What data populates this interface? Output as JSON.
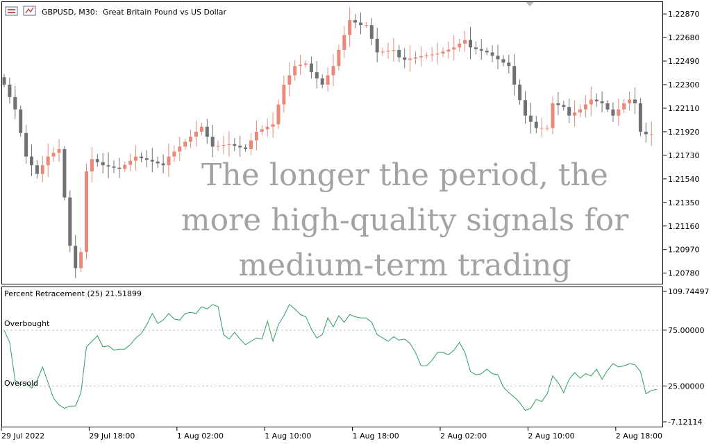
{
  "header": {
    "symbol_label": "GBPUSD, M30:",
    "description": "Great Britain Pound vs US Dollar"
  },
  "overlay": {
    "lines": [
      "The longer the period, the",
      "more high-quality signals for",
      "medium-term trading"
    ]
  },
  "indicator": {
    "label": "Percent Retracement (25) 21.51899",
    "overbought_label": "Overbought",
    "oversold_label": "Oversold"
  },
  "colors": {
    "bull": "#e8897a",
    "bear": "#6f7275",
    "indicator_line": "#2e9e5e",
    "level_line": "#c4c4c4",
    "overlay_text": "#a3a3a3"
  },
  "chart_data": [
    {
      "type": "candlestick",
      "title": "GBPUSD, M30: Great Britain Pound vs US Dollar",
      "ylim": [
        1.207,
        1.2296
      ],
      "y_ticks": [
        1.2287,
        1.2268,
        1.2249,
        1.223,
        1.2211,
        1.2192,
        1.2173,
        1.2154,
        1.2135,
        1.2116,
        1.2097,
        1.2078
      ],
      "y_tick_labels": [
        "1.22870",
        "1.22680",
        "1.22490",
        "1.22300",
        "1.22110",
        "1.21920",
        "1.21730",
        "1.21540",
        "1.21350",
        "1.21160",
        "1.20970",
        "1.20780"
      ],
      "x_tick_labels": [
        "29 Jul 2022",
        "29 Jul 18:00",
        "1 Aug 02:00",
        "1 Aug 10:00",
        "1 Aug 18:00",
        "2 Aug 02:00",
        "2 Aug 10:00",
        "2 Aug 18:00"
      ],
      "x_tick_index": [
        0,
        16,
        32,
        48,
        64,
        80,
        96,
        112
      ],
      "close_anchors": [
        [
          0,
          1.223
        ],
        [
          2,
          1.221
        ],
        [
          4,
          1.2172
        ],
        [
          6,
          1.2158
        ],
        [
          8,
          1.2172
        ],
        [
          10,
          1.2178
        ],
        [
          12,
          1.21
        ],
        [
          13,
          1.2082
        ],
        [
          14,
          1.2095
        ],
        [
          15,
          1.216
        ],
        [
          16,
          1.217
        ],
        [
          18,
          1.2165
        ],
        [
          21,
          1.2162
        ],
        [
          24,
          1.2172
        ],
        [
          27,
          1.2168
        ],
        [
          29,
          1.2165
        ],
        [
          30,
          1.2172
        ],
        [
          34,
          1.2188
        ],
        [
          36,
          1.2196
        ],
        [
          38,
          1.218
        ],
        [
          41,
          1.2182
        ],
        [
          44,
          1.2178
        ],
        [
          46,
          1.2192
        ],
        [
          49,
          1.2198
        ],
        [
          51,
          1.223
        ],
        [
          53,
          1.2245
        ],
        [
          55,
          1.2247
        ],
        [
          56,
          1.224
        ],
        [
          58,
          1.223
        ],
        [
          60,
          1.2245
        ],
        [
          61,
          1.2258
        ],
        [
          63,
          1.2282
        ],
        [
          65,
          1.2278
        ],
        [
          66,
          1.2278
        ],
        [
          68,
          1.2256
        ],
        [
          71,
          1.2258
        ],
        [
          72,
          1.2252
        ],
        [
          73,
          1.225
        ],
        [
          76,
          1.2253
        ],
        [
          79,
          1.2255
        ],
        [
          82,
          1.226
        ],
        [
          84,
          1.2266
        ],
        [
          85,
          1.226
        ],
        [
          88,
          1.2256
        ],
        [
          92,
          1.2245
        ],
        [
          93,
          1.223
        ],
        [
          95,
          1.2205
        ],
        [
          97,
          1.2195
        ],
        [
          99,
          1.2195
        ],
        [
          100,
          1.2215
        ],
        [
          102,
          1.2212
        ],
        [
          103,
          1.2205
        ],
        [
          105,
          1.221
        ],
        [
          107,
          1.2218
        ],
        [
          109,
          1.2215
        ],
        [
          110,
          1.221
        ],
        [
          111,
          1.2205
        ],
        [
          113,
          1.2215
        ],
        [
          114,
          1.2218
        ],
        [
          115,
          1.2215
        ],
        [
          116,
          1.2192
        ],
        [
          117,
          1.219
        ],
        [
          118,
          1.219
        ]
      ]
    },
    {
      "type": "line",
      "title": "Percent Retracement (25) 21.51899",
      "ylim": [
        -7.12114,
        109.74497
      ],
      "y_tick_labels": [
        "109.74497",
        "75.00000",
        "25.00000",
        "-7.12114"
      ],
      "y_ticks": [
        109.74497,
        75.0,
        25.0,
        -7.12114
      ],
      "levels": [
        75.0,
        25.0
      ],
      "x_tick_index": [
        0,
        16,
        32,
        48,
        64,
        80,
        96,
        112
      ],
      "anchors": [
        [
          0,
          75
        ],
        [
          1,
          64
        ],
        [
          2,
          30
        ],
        [
          3,
          26
        ],
        [
          4,
          28
        ],
        [
          5,
          23
        ],
        [
          6,
          30
        ],
        [
          7,
          42
        ],
        [
          8,
          28
        ],
        [
          9,
          14
        ],
        [
          10,
          8
        ],
        [
          11,
          5
        ],
        [
          12,
          7
        ],
        [
          13,
          7
        ],
        [
          14,
          19
        ],
        [
          15,
          60
        ],
        [
          16,
          65
        ],
        [
          17,
          70
        ],
        [
          18,
          60
        ],
        [
          19,
          61
        ],
        [
          20,
          57
        ],
        [
          21,
          58
        ],
        [
          22,
          58
        ],
        [
          23,
          62
        ],
        [
          24,
          68
        ],
        [
          25,
          72
        ],
        [
          26,
          80
        ],
        [
          27,
          90
        ],
        [
          28,
          81
        ],
        [
          29,
          84
        ],
        [
          30,
          90
        ],
        [
          31,
          85
        ],
        [
          32,
          84
        ],
        [
          33,
          90
        ],
        [
          34,
          91
        ],
        [
          35,
          90
        ],
        [
          36,
          96
        ],
        [
          37,
          94
        ],
        [
          38,
          98
        ],
        [
          39,
          96
        ],
        [
          40,
          71
        ],
        [
          41,
          67
        ],
        [
          42,
          73
        ],
        [
          43,
          67
        ],
        [
          44,
          62
        ],
        [
          45,
          65
        ],
        [
          46,
          68
        ],
        [
          47,
          67
        ],
        [
          48,
          83
        ],
        [
          49,
          65
        ],
        [
          50,
          80
        ],
        [
          51,
          88
        ],
        [
          52,
          98
        ],
        [
          53,
          94
        ],
        [
          54,
          89
        ],
        [
          55,
          87
        ],
        [
          56,
          76
        ],
        [
          57,
          68
        ],
        [
          58,
          71
        ],
        [
          59,
          86
        ],
        [
          60,
          78
        ],
        [
          61,
          88
        ],
        [
          62,
          82
        ],
        [
          63,
          89
        ],
        [
          64,
          87
        ],
        [
          65,
          86
        ],
        [
          66,
          86
        ],
        [
          67,
          82
        ],
        [
          68,
          71
        ],
        [
          69,
          68
        ],
        [
          70,
          65
        ],
        [
          71,
          69
        ],
        [
          72,
          66
        ],
        [
          73,
          67
        ],
        [
          74,
          63
        ],
        [
          75,
          55
        ],
        [
          76,
          43
        ],
        [
          77,
          43
        ],
        [
          78,
          48
        ],
        [
          79,
          55
        ],
        [
          80,
          55
        ],
        [
          81,
          53
        ],
        [
          82,
          57
        ],
        [
          83,
          64
        ],
        [
          84,
          55
        ],
        [
          85,
          38
        ],
        [
          86,
          35
        ],
        [
          87,
          36
        ],
        [
          88,
          40
        ],
        [
          89,
          36
        ],
        [
          90,
          35
        ],
        [
          91,
          24
        ],
        [
          92,
          19
        ],
        [
          93,
          15
        ],
        [
          94,
          10
        ],
        [
          95,
          3
        ],
        [
          96,
          5
        ],
        [
          97,
          13
        ],
        [
          98,
          11
        ],
        [
          99,
          18
        ],
        [
          100,
          34
        ],
        [
          101,
          28
        ],
        [
          102,
          19
        ],
        [
          103,
          31
        ],
        [
          104,
          37
        ],
        [
          105,
          32
        ],
        [
          106,
          36
        ],
        [
          107,
          34
        ],
        [
          108,
          40
        ],
        [
          109,
          31
        ],
        [
          110,
          39
        ],
        [
          111,
          45
        ],
        [
          112,
          42
        ],
        [
          113,
          43
        ],
        [
          114,
          45
        ],
        [
          115,
          44
        ],
        [
          116,
          38
        ],
        [
          117,
          18
        ],
        [
          118,
          21
        ],
        [
          119,
          22
        ]
      ]
    }
  ]
}
